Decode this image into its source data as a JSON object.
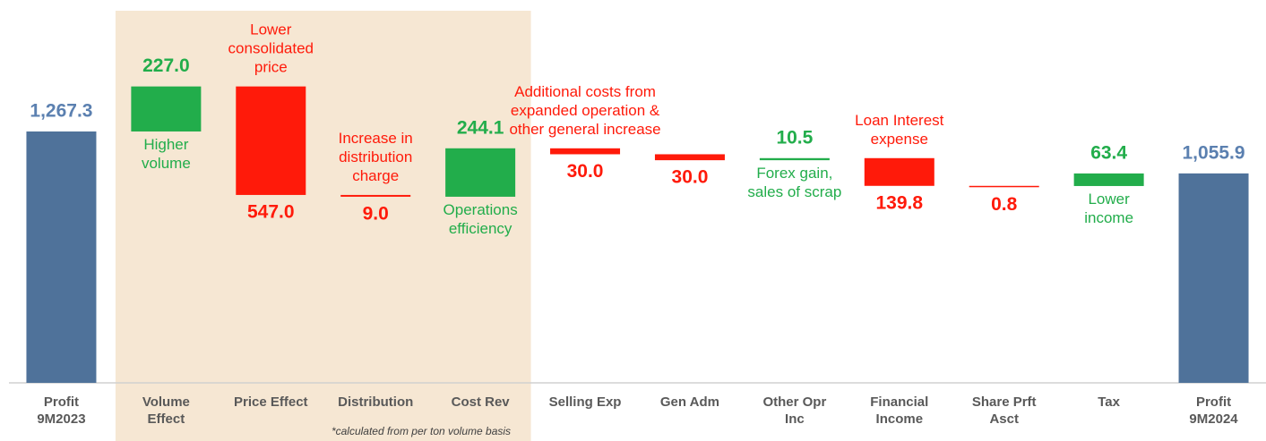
{
  "chart_data": {
    "type": "waterfall",
    "categories": [
      "Profit\n9M2023",
      "Volume\nEffect",
      "Price Effect",
      "Distribution",
      "Cost Rev",
      "Selling Exp",
      "Gen Adm",
      "Other Opr\nInc",
      "Financial\nIncome",
      "Share Prft\nAsct",
      "Tax",
      "Profit\n9M2024"
    ],
    "values": [
      1267.3,
      227.0,
      -547.0,
      -9.0,
      244.1,
      -30.0,
      -30.0,
      10.5,
      -139.8,
      -0.8,
      63.4,
      1055.9
    ],
    "value_labels": [
      "1,267.3",
      "227.0",
      "547.0",
      "9.0",
      "244.1",
      "30.0",
      "30.0",
      "10.5",
      "139.8",
      "0.8",
      "63.4",
      "1,055.9"
    ],
    "totals": [
      0,
      11
    ],
    "annotations": [
      null,
      "Higher\nvolume",
      "Lower\nconsolidated\nprice",
      "Increase in\ndistribution\ncharge",
      "Operations\nefficiency",
      "Additional costs from\nexpanded operation &\nother general increase",
      null,
      "Forex gain,\nsales of scrap",
      "Loan Interest\nexpense",
      null,
      "Lower\nincome",
      null
    ],
    "footnote": "*calculated from per ton  volume basis",
    "colors": {
      "total": "#4f729a",
      "increase": "#22ad4b",
      "decrease": "#ff1a0a",
      "total_label": "#5b80b0"
    },
    "ylim": [
      0,
      1885
    ]
  }
}
